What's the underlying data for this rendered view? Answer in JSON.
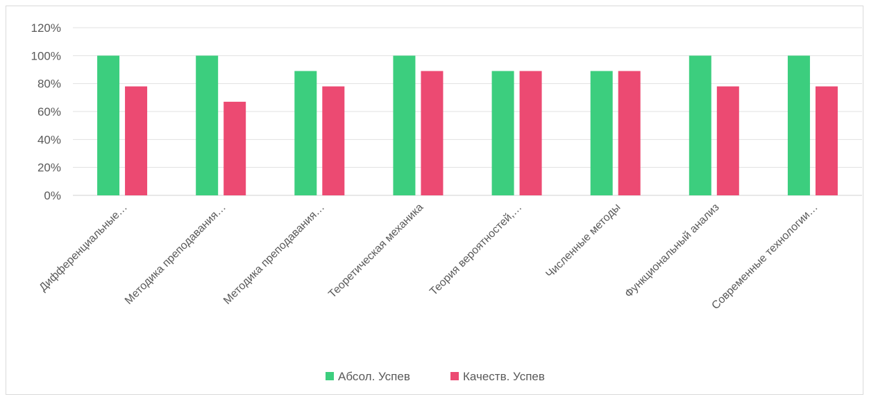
{
  "chart_data": {
    "type": "bar",
    "categories": [
      "Дифференциальные…",
      "Методика преподавания…",
      "Методика преподавания…",
      "Теоретическая  механика",
      "Теория вероятностей,…",
      "Численные методы",
      "Функциональный анализ",
      "Современные технологии…"
    ],
    "series": [
      {
        "name": "Абсол. Успев",
        "color": "#3cce7e",
        "values": [
          100,
          100,
          89,
          100,
          89,
          89,
          100,
          100
        ]
      },
      {
        "name": "Качеств. Успев",
        "color": "#ec4a72",
        "values": [
          78,
          67,
          78,
          89,
          89,
          89,
          78,
          78
        ]
      }
    ],
    "yticks": [
      "0%",
      "20%",
      "40%",
      "60%",
      "80%",
      "100%",
      "120%"
    ],
    "ylim": [
      0,
      120
    ],
    "grid": true,
    "legend_position": "bottom"
  }
}
